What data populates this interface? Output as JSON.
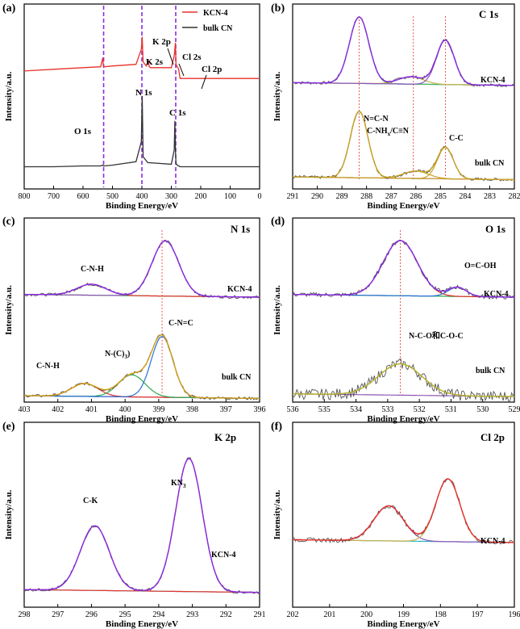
{
  "figure": {
    "type": "xps-multipanel"
  },
  "chart_data": [
    {
      "panel": "(a)",
      "type": "line",
      "title": "",
      "xlabel": "Binding Energy/eV",
      "ylabel": "Intensity/a.u.",
      "xlim": [
        800,
        0
      ],
      "xticks": [
        800,
        700,
        600,
        500,
        400,
        300,
        200,
        100,
        0
      ],
      "legend": [
        {
          "name": "KCN-4",
          "color": "#e8322b"
        },
        {
          "name": "bulk CN",
          "color": "#333333"
        }
      ],
      "series": [
        {
          "name": "KCN-4",
          "color": "#e8322b",
          "offset": 0.62,
          "x": [
            800,
            700,
            600,
            540,
            533,
            531,
            528,
            500,
            420,
            402,
            399,
            396,
            385,
            378,
            375,
            370,
            300,
            290,
            286,
            284,
            275,
            270,
            250,
            200,
            0
          ],
          "y": [
            0.04,
            0.06,
            0.08,
            0.09,
            0.2,
            0.1,
            0.09,
            0.1,
            0.12,
            0.3,
            0.45,
            0.15,
            0.1,
            0.16,
            0.09,
            0.08,
            0.08,
            0.22,
            0.38,
            0.12,
            0.06,
            -0.05,
            -0.05,
            -0.05,
            -0.05
          ]
        },
        {
          "name": "bulk CN",
          "color": "#333333",
          "offset": 0.12,
          "x": [
            800,
            700,
            600,
            540,
            533,
            531,
            528,
            500,
            420,
            402,
            399,
            396,
            380,
            300,
            290,
            288,
            286,
            284,
            280,
            270,
            200,
            100,
            0
          ],
          "y": [
            0.0,
            0.0,
            0.01,
            0.01,
            0.02,
            0.01,
            0.01,
            0.02,
            0.06,
            0.3,
            0.85,
            0.12,
            0.05,
            0.03,
            0.2,
            0.55,
            0.2,
            0.04,
            0.02,
            0.0,
            0.0,
            0.0,
            0.0
          ]
        }
      ],
      "vlines": [
        530,
        400,
        285
      ],
      "annotations": [
        "O 1s",
        "N 1s",
        "C 1s",
        "K 2s",
        "K 2p",
        "Cl 2s",
        "Cl 2p"
      ]
    },
    {
      "panel": "(b)",
      "type": "line",
      "title": "C 1s",
      "xlabel": "Binding Energy/eV",
      "ylabel": "Intensity/a.u.",
      "xlim": [
        291,
        282
      ],
      "xticks": [
        291,
        290,
        289,
        288,
        287,
        286,
        285,
        284,
        283,
        282
      ],
      "vlines": [
        288.3,
        286.1,
        284.8
      ],
      "groups": [
        {
          "label": "KCN-4",
          "baseline": 0.56,
          "peaks": [
            {
              "c": 288.3,
              "h": 0.36,
              "w": 0.55,
              "color": "#4fb35c"
            },
            {
              "c": 286.2,
              "h": 0.04,
              "w": 0.7,
              "color": "#c9b24a"
            },
            {
              "c": 284.8,
              "h": 0.24,
              "w": 0.5,
              "color": "#8e55b5"
            }
          ],
          "base_color": "#2ab5c7",
          "fit_color": "#8a2be2"
        },
        {
          "label": "bulk CN",
          "baseline": 0.05,
          "peaks": [
            {
              "c": 288.3,
              "h": 0.36,
              "w": 0.5,
              "color": "#c9a227"
            },
            {
              "c": 286.0,
              "h": 0.04,
              "w": 0.7,
              "color": "#c9a227"
            },
            {
              "c": 284.8,
              "h": 0.17,
              "w": 0.45,
              "color": "#c9a227"
            }
          ],
          "base_color": "#8e55b5",
          "fit_color": "#c9a227"
        }
      ],
      "annotations": [
        "N=C-N",
        "C-NHₓ/C≡N",
        "C-C"
      ]
    },
    {
      "panel": "(c)",
      "type": "line",
      "title": "N 1s",
      "xlabel": "Binding Energy/eV",
      "ylabel": "Intensity/a.u.",
      "xlim": [
        403,
        396
      ],
      "xticks": [
        403,
        402,
        401,
        400,
        399,
        398,
        397,
        396
      ],
      "vlines": [
        398.9
      ],
      "groups": [
        {
          "label": "KCN-4",
          "baseline": 0.57,
          "peaks": [
            {
              "c": 401.0,
              "h": 0.06,
              "w": 0.6,
              "color": "#e8322b"
            },
            {
              "c": 398.8,
              "h": 0.3,
              "w": 0.55,
              "color": "#8e55b5"
            }
          ],
          "base_color": "#2fa84f",
          "fit_color": "#8a2be2"
        },
        {
          "label": "bulk CN",
          "baseline": 0.02,
          "peaks": [
            {
              "c": 401.2,
              "h": 0.07,
              "w": 0.55,
              "color": "#e8322b"
            },
            {
              "c": 399.8,
              "h": 0.12,
              "w": 0.55,
              "color": "#2fa84f"
            },
            {
              "c": 398.9,
              "h": 0.33,
              "w": 0.45,
              "color": "#2a6fd6"
            }
          ],
          "base_color": "#8e55b5",
          "fit_color": "#d4a017"
        }
      ],
      "annotations": [
        "C-N-H",
        "C-N-H",
        "N-(C)₃",
        "C-N=C"
      ]
    },
    {
      "panel": "(d)",
      "type": "line",
      "title": "O 1s",
      "xlabel": "Binding Energy/eV",
      "ylabel": "Intensity/a.u.",
      "xlim": [
        536,
        529
      ],
      "xticks": [
        536,
        535,
        534,
        533,
        532,
        531,
        530,
        529
      ],
      "vlines": [
        532.6
      ],
      "groups": [
        {
          "label": "KCN-4",
          "baseline": 0.57,
          "peaks": [
            {
              "c": 532.6,
              "h": 0.3,
              "w": 0.75,
              "color": "#e8322b"
            },
            {
              "c": 530.8,
              "h": 0.05,
              "w": 0.4,
              "color": "#2a6fd6"
            }
          ],
          "base_color": "#2fa84f",
          "fit_color": "#8a2be2",
          "noise": 0.012
        },
        {
          "label": "bulk CN",
          "baseline": 0.03,
          "peaks": [
            {
              "c": 532.6,
              "h": 0.17,
              "w": 0.95,
              "color": "#b7b22c"
            }
          ],
          "base_color": "#8e55b5",
          "fit_color": "#b7b22c",
          "noise": 0.03
        }
      ],
      "annotations": [
        "O=C-OH",
        "N-C-O和C-O-C"
      ]
    },
    {
      "panel": "(e)",
      "type": "line",
      "title": "K 2p",
      "xlabel": "Binding Energy/eV",
      "ylabel": "Intensity/a.u.",
      "xlim": [
        298,
        291
      ],
      "xticks": [
        298,
        297,
        296,
        295,
        294,
        293,
        292,
        291
      ],
      "groups": [
        {
          "label": "KCN-4",
          "baseline": 0.08,
          "peaks": [
            {
              "c": 295.9,
              "h": 0.35,
              "w": 0.6,
              "color": "#e8322b"
            },
            {
              "c": 293.1,
              "h": 0.72,
              "w": 0.55,
              "color": "#e8322b"
            }
          ],
          "base_color": "#2ab5c7",
          "fit_color": "#8a2be2"
        }
      ],
      "annotations": [
        "C-K",
        "KN₃"
      ]
    },
    {
      "panel": "(f)",
      "type": "line",
      "title": "Cl 2p",
      "xlabel": "Binding Energy/eV",
      "ylabel": "Intensity/a.u.",
      "xlim": [
        202,
        196
      ],
      "xticks": [
        202,
        201,
        200,
        199,
        198,
        197,
        196
      ],
      "groups": [
        {
          "label": "KCN-4",
          "baseline": 0.35,
          "peaks": [
            {
              "c": 199.4,
              "h": 0.19,
              "w": 0.55,
              "color": "#8e55b5"
            },
            {
              "c": 197.8,
              "h": 0.34,
              "w": 0.45,
              "color": "#c9b24a"
            }
          ],
          "base_color": "#2ab5c7",
          "fit_color": "#e8322b",
          "noise": 0.012
        }
      ]
    }
  ],
  "text": {
    "a": {
      "tag": "(a)",
      "legend1": "KCN-4",
      "legend2": "bulk CN",
      "o1s": "O 1s",
      "n1s": "N 1s",
      "c1s": "C 1s",
      "k2s": "K 2s",
      "k2p": "K 2p",
      "cl2s": "Cl 2s",
      "cl2p": "Cl 2p"
    },
    "b": {
      "tag": "(b)",
      "title": "C 1s",
      "g1": "KCN-4",
      "g2": "bulk CN",
      "a1": "N=C-N",
      "a2": "C-NH",
      "a2sub": "x",
      "a2rest": "/C≡N",
      "a3": "C-C"
    },
    "c": {
      "tag": "(c)",
      "title": "N 1s",
      "g1": "KCN-4",
      "g2": "bulk CN",
      "a1": "C-N-H",
      "a2": "C-N-H",
      "a3": "N-(C)",
      "a3sub": "3",
      "a4": "C-N=C"
    },
    "d": {
      "tag": "(d)",
      "title": "O 1s",
      "g1": "KCN-4",
      "g2": "bulk CN",
      "a1": "O=C-OH",
      "a2": "N-C-O和C-O-C"
    },
    "e": {
      "tag": "(e)",
      "title": "K 2p",
      "g1": "KCN-4",
      "a1": "C-K",
      "a2": "KN",
      "a2sub": "3"
    },
    "f": {
      "tag": "(f)",
      "title": "Cl 2p",
      "g1": "KCN-4"
    }
  }
}
